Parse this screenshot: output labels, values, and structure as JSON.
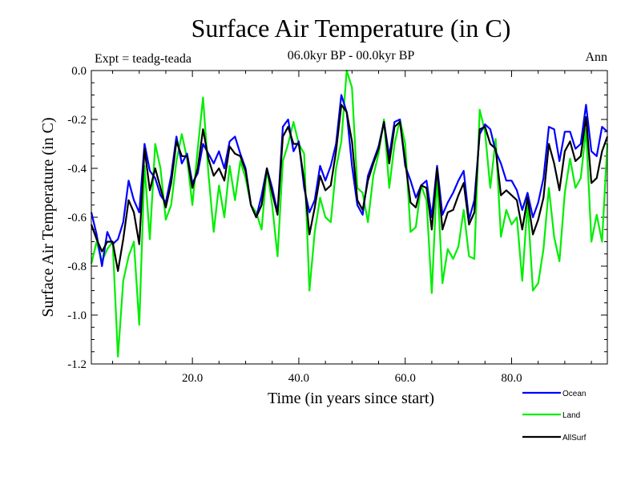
{
  "chart_data": {
    "type": "line",
    "title": "Surface Air Temperature (in C)",
    "subtitle": "06.0kyr BP - 00.0kyr BP",
    "experiment_label": "Expt = teadg-teada",
    "period_label": "Ann",
    "xlabel": "Time (in years since start)",
    "ylabel": "Surface Air Temperature (in C)",
    "xlim": [
      1,
      98
    ],
    "ylim": [
      -1.2,
      0.0
    ],
    "xticks": [
      20,
      40,
      60,
      80
    ],
    "xtick_labels": [
      "20.0",
      "40.0",
      "60.0",
      "80.0"
    ],
    "yticks": [
      0.0,
      -0.2,
      -0.4,
      -0.6,
      -0.8,
      -1.0,
      -1.2
    ],
    "ytick_labels": [
      "0.0",
      "-0.2",
      "-0.4",
      "-0.6",
      "-0.8",
      "-1.0",
      "-1.2"
    ],
    "grid": false,
    "legend_position": "bottom-right, outside plot",
    "series": [
      {
        "name": "Ocean",
        "color": "#0000ff",
        "x": [
          1,
          2,
          3,
          4,
          5,
          6,
          7,
          8,
          9,
          10,
          11,
          12,
          13,
          14,
          15,
          16,
          17,
          18,
          19,
          20,
          21,
          22,
          23,
          24,
          25,
          26,
          27,
          28,
          29,
          30,
          31,
          32,
          33,
          34,
          35,
          36,
          37,
          38,
          39,
          40,
          41,
          42,
          43,
          44,
          45,
          46,
          47,
          48,
          49,
          50,
          51,
          52,
          53,
          54,
          55,
          56,
          57,
          58,
          59,
          60,
          61,
          62,
          63,
          64,
          65,
          66,
          67,
          68,
          69,
          70,
          71,
          72,
          73,
          74,
          75,
          76,
          77,
          78,
          79,
          80,
          81,
          82,
          83,
          84,
          85,
          86,
          87,
          88,
          89,
          90,
          91,
          92,
          93,
          94,
          95,
          96,
          97,
          98
        ],
        "values": [
          -0.58,
          -0.67,
          -0.8,
          -0.66,
          -0.71,
          -0.69,
          -0.62,
          -0.45,
          -0.53,
          -0.58,
          -0.3,
          -0.41,
          -0.44,
          -0.51,
          -0.54,
          -0.43,
          -0.27,
          -0.38,
          -0.34,
          -0.46,
          -0.42,
          -0.3,
          -0.34,
          -0.38,
          -0.33,
          -0.4,
          -0.29,
          -0.27,
          -0.34,
          -0.4,
          -0.55,
          -0.6,
          -0.51,
          -0.4,
          -0.48,
          -0.58,
          -0.23,
          -0.2,
          -0.33,
          -0.29,
          -0.48,
          -0.58,
          -0.53,
          -0.39,
          -0.45,
          -0.39,
          -0.3,
          -0.1,
          -0.17,
          -0.39,
          -0.55,
          -0.59,
          -0.43,
          -0.37,
          -0.31,
          -0.21,
          -0.35,
          -0.21,
          -0.2,
          -0.39,
          -0.45,
          -0.52,
          -0.47,
          -0.45,
          -0.6,
          -0.39,
          -0.59,
          -0.54,
          -0.5,
          -0.45,
          -0.41,
          -0.61,
          -0.53,
          -0.26,
          -0.22,
          -0.24,
          -0.33,
          -0.38,
          -0.45,
          -0.45,
          -0.49,
          -0.57,
          -0.5,
          -0.6,
          -0.54,
          -0.44,
          -0.23,
          -0.24,
          -0.37,
          -0.25,
          -0.25,
          -0.32,
          -0.3,
          -0.14,
          -0.33,
          -0.35,
          -0.23,
          -0.25
        ]
      },
      {
        "name": "Land",
        "color": "#00ee00",
        "x": [
          1,
          2,
          3,
          4,
          5,
          6,
          7,
          8,
          9,
          10,
          11,
          12,
          13,
          14,
          15,
          16,
          17,
          18,
          19,
          20,
          21,
          22,
          23,
          24,
          25,
          26,
          27,
          28,
          29,
          30,
          31,
          32,
          33,
          34,
          35,
          36,
          37,
          38,
          39,
          40,
          41,
          42,
          43,
          44,
          45,
          46,
          47,
          48,
          49,
          50,
          51,
          52,
          53,
          54,
          55,
          56,
          57,
          58,
          59,
          60,
          61,
          62,
          63,
          64,
          65,
          66,
          67,
          68,
          69,
          70,
          71,
          72,
          73,
          74,
          75,
          76,
          77,
          78,
          79,
          80,
          81,
          82,
          83,
          84,
          85,
          86,
          87,
          88,
          89,
          90,
          91,
          92,
          93,
          94,
          95,
          96,
          97,
          98
        ],
        "values": [
          -0.79,
          -0.7,
          -0.78,
          -0.73,
          -0.7,
          -1.17,
          -0.86,
          -0.76,
          -0.7,
          -1.04,
          -0.39,
          -0.69,
          -0.3,
          -0.4,
          -0.61,
          -0.55,
          -0.37,
          -0.26,
          -0.36,
          -0.55,
          -0.32,
          -0.11,
          -0.42,
          -0.66,
          -0.47,
          -0.6,
          -0.39,
          -0.53,
          -0.37,
          -0.44,
          -0.55,
          -0.58,
          -0.65,
          -0.4,
          -0.55,
          -0.76,
          -0.37,
          -0.3,
          -0.21,
          -0.3,
          -0.34,
          -0.9,
          -0.66,
          -0.52,
          -0.6,
          -0.62,
          -0.4,
          -0.29,
          0.0,
          -0.07,
          -0.48,
          -0.5,
          -0.62,
          -0.43,
          -0.34,
          -0.2,
          -0.48,
          -0.3,
          -0.2,
          -0.3,
          -0.66,
          -0.64,
          -0.47,
          -0.53,
          -0.91,
          -0.43,
          -0.87,
          -0.73,
          -0.77,
          -0.72,
          -0.57,
          -0.76,
          -0.77,
          -0.16,
          -0.25,
          -0.48,
          -0.28,
          -0.68,
          -0.57,
          -0.63,
          -0.6,
          -0.86,
          -0.54,
          -0.9,
          -0.87,
          -0.73,
          -0.48,
          -0.68,
          -0.78,
          -0.5,
          -0.36,
          -0.48,
          -0.44,
          -0.24,
          -0.7,
          -0.59,
          -0.7,
          -0.3
        ]
      },
      {
        "name": "AllSurf",
        "color": "#000000",
        "x": [
          1,
          2,
          3,
          4,
          5,
          6,
          7,
          8,
          9,
          10,
          11,
          12,
          13,
          14,
          15,
          16,
          17,
          18,
          19,
          20,
          21,
          22,
          23,
          24,
          25,
          26,
          27,
          28,
          29,
          30,
          31,
          32,
          33,
          34,
          35,
          36,
          37,
          38,
          39,
          40,
          41,
          42,
          43,
          44,
          45,
          46,
          47,
          48,
          49,
          50,
          51,
          52,
          53,
          54,
          55,
          56,
          57,
          58,
          59,
          60,
          61,
          62,
          63,
          64,
          65,
          66,
          67,
          68,
          69,
          70,
          71,
          72,
          73,
          74,
          75,
          76,
          77,
          78,
          79,
          80,
          81,
          82,
          83,
          84,
          85,
          86,
          87,
          88,
          89,
          90,
          91,
          92,
          93,
          94,
          95,
          96,
          97,
          98
        ],
        "values": [
          -0.63,
          -0.69,
          -0.74,
          -0.7,
          -0.7,
          -0.82,
          -0.69,
          -0.53,
          -0.58,
          -0.71,
          -0.32,
          -0.49,
          -0.4,
          -0.48,
          -0.56,
          -0.46,
          -0.29,
          -0.35,
          -0.35,
          -0.48,
          -0.4,
          -0.24,
          -0.36,
          -0.43,
          -0.4,
          -0.45,
          -0.31,
          -0.34,
          -0.35,
          -0.41,
          -0.55,
          -0.6,
          -0.55,
          -0.4,
          -0.5,
          -0.59,
          -0.27,
          -0.23,
          -0.3,
          -0.3,
          -0.45,
          -0.67,
          -0.56,
          -0.43,
          -0.49,
          -0.47,
          -0.33,
          -0.14,
          -0.17,
          -0.29,
          -0.53,
          -0.57,
          -0.45,
          -0.38,
          -0.32,
          -0.21,
          -0.38,
          -0.23,
          -0.21,
          -0.37,
          -0.54,
          -0.56,
          -0.47,
          -0.48,
          -0.65,
          -0.4,
          -0.65,
          -0.58,
          -0.57,
          -0.51,
          -0.46,
          -0.63,
          -0.58,
          -0.24,
          -0.23,
          -0.3,
          -0.32,
          -0.51,
          -0.49,
          -0.51,
          -0.53,
          -0.65,
          -0.52,
          -0.67,
          -0.61,
          -0.52,
          -0.3,
          -0.38,
          -0.49,
          -0.33,
          -0.29,
          -0.37,
          -0.35,
          -0.19,
          -0.46,
          -0.44,
          -0.33,
          -0.27
        ]
      }
    ]
  }
}
